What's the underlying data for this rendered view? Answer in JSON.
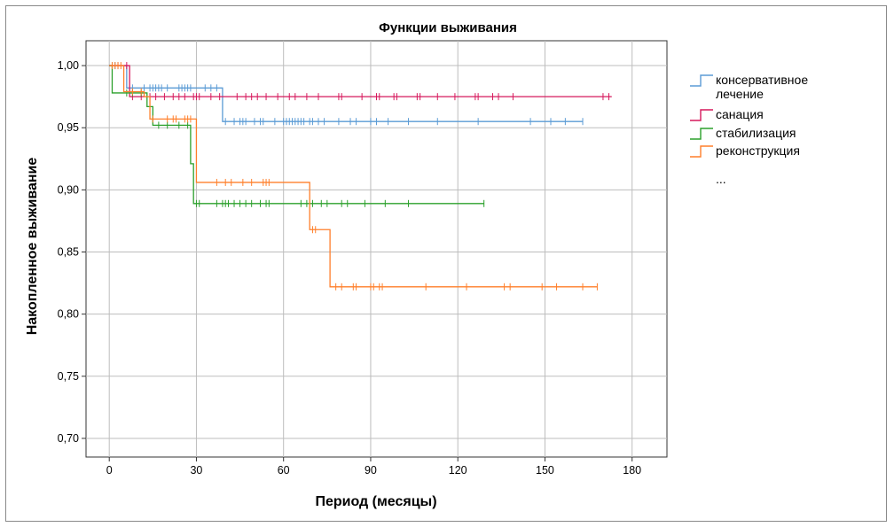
{
  "chart_data": {
    "type": "line",
    "title": "Функции выживания",
    "xlabel": "Период (месяцы)",
    "ylabel": "Накопленное выживание",
    "xlim": [
      -8,
      192
    ],
    "ylim": [
      0.685,
      1.02
    ],
    "x_ticks": [
      0,
      30,
      60,
      90,
      120,
      150,
      180
    ],
    "y_ticks": [
      1.0,
      0.95,
      0.9,
      0.85,
      0.8,
      0.75,
      0.7
    ],
    "x_tick_labels": [
      "0",
      "30",
      "60",
      "90",
      "120",
      "150",
      "180"
    ],
    "y_tick_labels": [
      "1,00",
      "0,95",
      "0,90",
      "0,85",
      "0,80",
      "0,75",
      "0,70"
    ],
    "grid": true,
    "legend_placement": "right",
    "legend_extra": "...",
    "series": [
      {
        "name": "консервативное лечение",
        "color": "#5b9bd5",
        "steps": [
          [
            0,
            1.0
          ],
          [
            6,
            0.982
          ],
          [
            39,
            0.955
          ],
          [
            163,
            0.955
          ]
        ],
        "censored": [
          1,
          2,
          8,
          12,
          14,
          15,
          16,
          17,
          18,
          20,
          24,
          25,
          26,
          27,
          28,
          33,
          35,
          37,
          40,
          43,
          45,
          46,
          47,
          50,
          52,
          53,
          57,
          60,
          61,
          62,
          63,
          64,
          65,
          66,
          67,
          69,
          70,
          72,
          74,
          79,
          83,
          85,
          90,
          92,
          96,
          103,
          113,
          127,
          145,
          152,
          157,
          163
        ]
      },
      {
        "name": "санация",
        "color": "#d6185c",
        "steps": [
          [
            0,
            1.0
          ],
          [
            7,
            0.975
          ],
          [
            173,
            0.975
          ]
        ],
        "censored": [
          3,
          6,
          8,
          11,
          14,
          16,
          19,
          22,
          24,
          26,
          29,
          30,
          31,
          35,
          38,
          44,
          47,
          49,
          51,
          54,
          58,
          62,
          64,
          68,
          72,
          79,
          80,
          87,
          92,
          93,
          98,
          99,
          106,
          107,
          113,
          119,
          126,
          127,
          132,
          134,
          139,
          170,
          172
        ]
      },
      {
        "name": "стабилизация",
        "color": "#2ca02c",
        "steps": [
          [
            0,
            1.0
          ],
          [
            1,
            0.978
          ],
          [
            6,
            0.978
          ],
          [
            13,
            0.967
          ],
          [
            15,
            0.952
          ],
          [
            26,
            0.952
          ],
          [
            28,
            0.921
          ],
          [
            29,
            0.889
          ],
          [
            129,
            0.889
          ]
        ],
        "censored": [
          6,
          8,
          11,
          17,
          20,
          24,
          27,
          30,
          31,
          37,
          39,
          40,
          41,
          43,
          45,
          47,
          49,
          52,
          54,
          55,
          66,
          68,
          70,
          73,
          75,
          80,
          82,
          88,
          95,
          103,
          129
        ]
      },
      {
        "name": "реконструкция",
        "color": "#ff7f2a",
        "steps": [
          [
            0,
            1.0
          ],
          [
            5,
            0.979
          ],
          [
            12,
            0.975
          ],
          [
            14,
            0.957
          ],
          [
            28,
            0.957
          ],
          [
            30,
            0.906
          ],
          [
            68,
            0.906
          ],
          [
            69,
            0.868
          ],
          [
            75,
            0.868
          ],
          [
            76,
            0.822
          ],
          [
            168,
            0.822
          ]
        ],
        "censored": [
          1,
          2,
          3,
          4,
          8,
          11,
          15,
          20,
          22,
          23,
          26,
          27,
          28,
          37,
          40,
          42,
          46,
          49,
          53,
          54,
          55,
          70,
          71,
          78,
          80,
          84,
          85,
          90,
          91,
          93,
          94,
          109,
          123,
          136,
          138,
          149,
          154,
          163,
          168
        ]
      }
    ]
  }
}
